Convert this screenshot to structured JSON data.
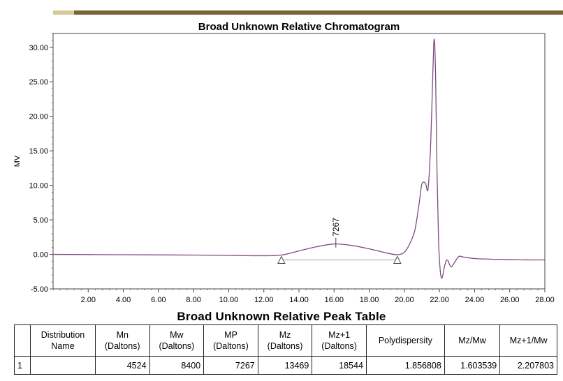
{
  "chart_data": {
    "type": "line",
    "title": "Broad Unknown Relative Chromatogram",
    "xlabel": "",
    "ylabel": "MV",
    "xlim": [
      0,
      28
    ],
    "ylim": [
      -5,
      32
    ],
    "x_ticks": [
      "2.00",
      "4.00",
      "6.00",
      "8.00",
      "10.00",
      "12.00",
      "14.00",
      "16.00",
      "18.00",
      "20.00",
      "22.00",
      "24.00",
      "26.00",
      "28.00"
    ],
    "y_ticks": [
      "30.00",
      "25.00",
      "20.00",
      "15.00",
      "10.00",
      "5.00",
      "0.00",
      "-5.00"
    ],
    "grid": false,
    "series": [
      {
        "color": "#7a4e7e",
        "x": [
          0,
          4,
          8,
          10,
          12,
          13,
          14,
          15,
          16,
          17,
          18,
          19,
          19.6,
          20.0,
          20.3,
          20.6,
          20.85,
          21.0,
          21.2,
          21.35,
          21.5,
          21.62,
          21.7,
          21.78,
          21.86,
          21.95,
          22.05,
          22.15,
          22.3,
          22.45,
          22.65,
          22.85,
          23.1,
          23.4,
          24.0,
          25.0,
          26.0,
          27.0,
          28.0
        ],
        "y": [
          0.0,
          -0.05,
          -0.1,
          -0.15,
          -0.2,
          -0.1,
          0.5,
          1.1,
          1.5,
          1.3,
          0.8,
          0.2,
          -0.05,
          0.3,
          1.5,
          3.5,
          7.5,
          10.2,
          10.3,
          9.5,
          16,
          26,
          31.2,
          26,
          12,
          2,
          -2.5,
          -3.4,
          -1.6,
          -0.8,
          -1.8,
          -1.2,
          -0.3,
          -0.4,
          -0.6,
          -0.7,
          -0.75,
          -0.8,
          -0.8
        ]
      }
    ],
    "baseline": {
      "x": [
        13.0,
        19.6
      ],
      "y": [
        -0.8,
        -0.8
      ]
    },
    "annotations": [
      {
        "label": "7267",
        "x": 16.1,
        "y": 1.6
      }
    ]
  },
  "peak_table": {
    "title": "Broad Unknown Relative Peak Table",
    "headers": [
      [
        "",
        ""
      ],
      [
        "Distribution",
        "Name"
      ],
      [
        "Mn",
        "(Daltons)"
      ],
      [
        "Mw",
        "(Daltons)"
      ],
      [
        "MP",
        "(Daltons)"
      ],
      [
        "Mz",
        "(Daltons)"
      ],
      [
        "Mz+1",
        "(Daltons)"
      ],
      [
        "Polydispersity",
        ""
      ],
      [
        "Mz/Mw",
        ""
      ],
      [
        "Mz+1/Mw",
        ""
      ]
    ],
    "rows": [
      [
        "1",
        "",
        "4524",
        "8400",
        "7267",
        "13469",
        "18544",
        "1.856808",
        "1.603539",
        "2.207803"
      ]
    ]
  }
}
